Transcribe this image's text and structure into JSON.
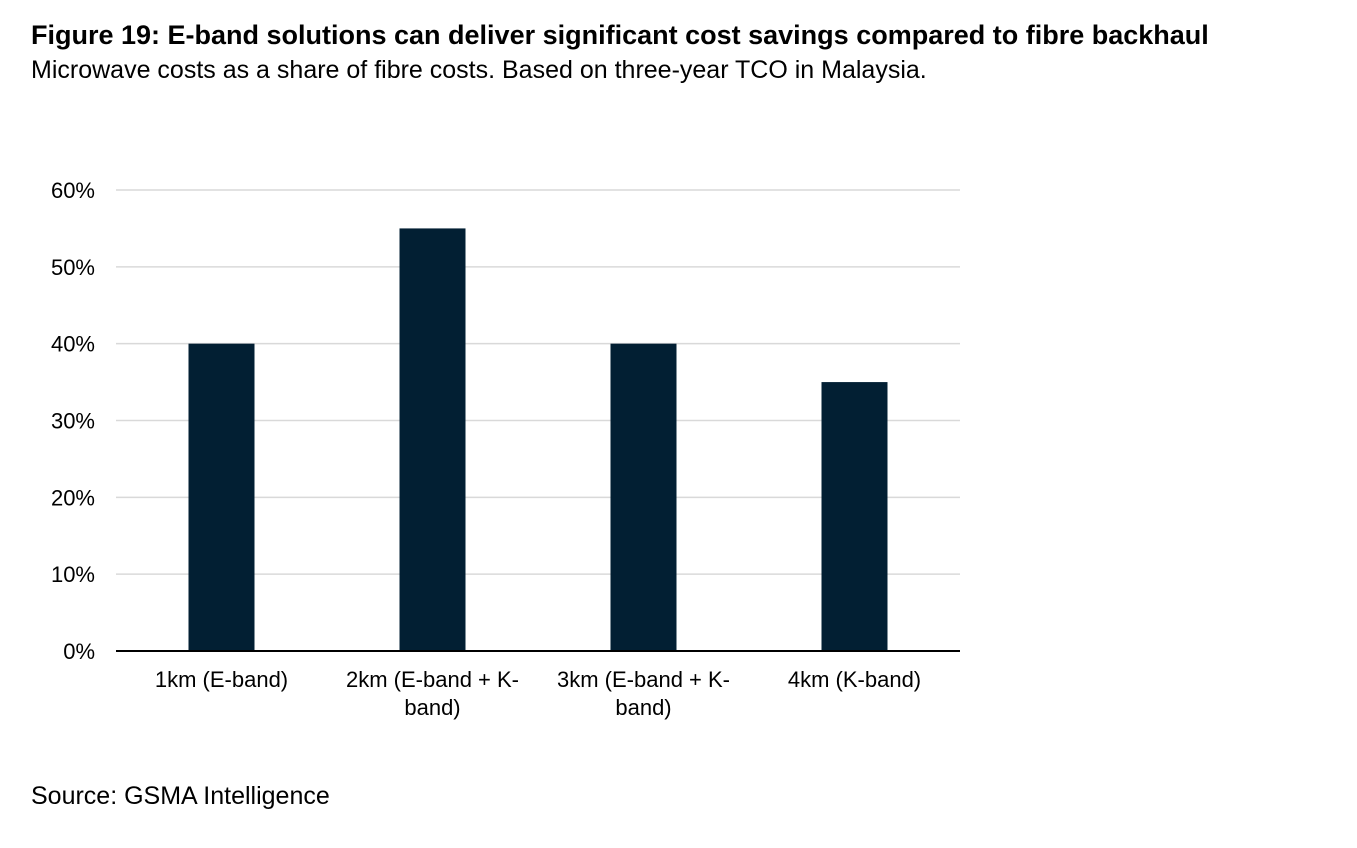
{
  "figure": {
    "title": "Figure 19: E-band solutions can deliver significant cost savings compared to fibre backhaul",
    "subtitle": "Microwave costs as a share of fibre costs. Based on three-year TCO in Malaysia.",
    "source": "Source: GSMA Intelligence"
  },
  "chart_data": {
    "type": "bar",
    "categories": [
      [
        "1km (E-band)"
      ],
      [
        "2km (E-band + K-",
        "band)"
      ],
      [
        "3km (E-band + K-",
        "band)"
      ],
      [
        "4km (K-band)"
      ]
    ],
    "values": [
      0.4,
      0.55,
      0.4,
      0.35
    ],
    "ylim": [
      0,
      0.6
    ],
    "yticks": [
      0,
      0.1,
      0.2,
      0.3,
      0.4,
      0.5,
      0.6
    ],
    "ytick_labels": [
      "0%",
      "10%",
      "20%",
      "30%",
      "40%",
      "50%",
      "60%"
    ],
    "grid": true,
    "legend": "none",
    "bar_color": "#021f33",
    "grid_color": "#d9d9d9",
    "axis_color": "#000000"
  }
}
